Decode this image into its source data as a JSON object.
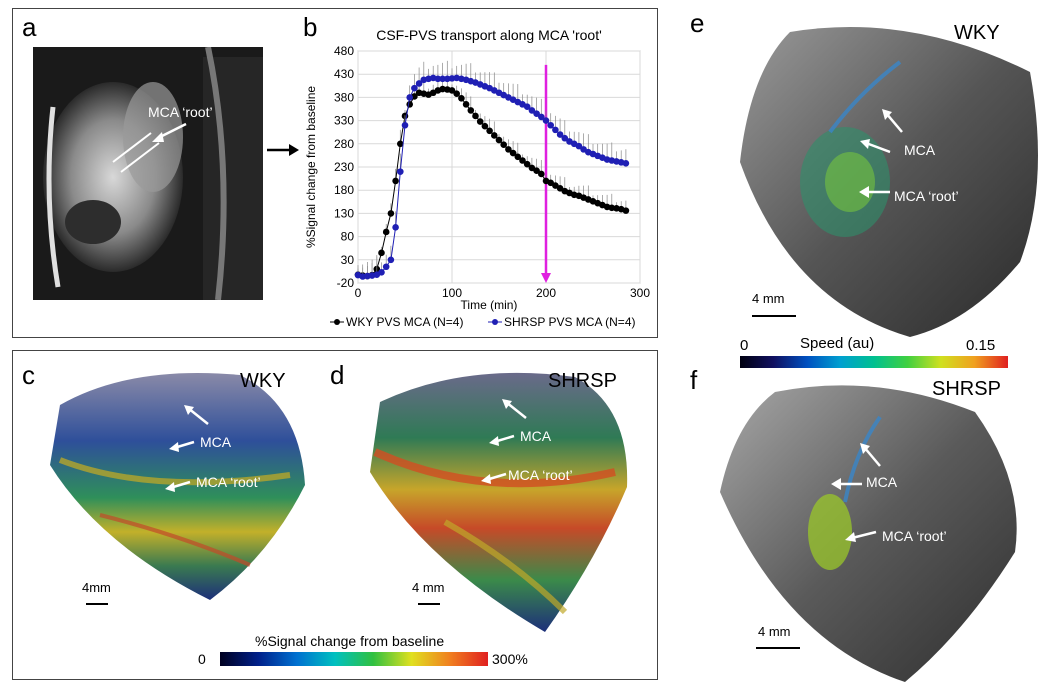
{
  "panels": {
    "a": {
      "label": "a",
      "annotation": "MCA ‘root’"
    },
    "b": {
      "label": "b"
    },
    "c": {
      "label": "c",
      "title": "WKY",
      "arrows": [
        "MCA",
        "MCA ‘root’"
      ],
      "scale": "4mm"
    },
    "d": {
      "label": "d",
      "title": "SHRSP",
      "arrows": [
        "MCA",
        "MCA ‘root’"
      ],
      "scale": "4 mm"
    },
    "e": {
      "label": "e",
      "title": "WKY",
      "arrows": [
        "MCA",
        "MCA ‘root’"
      ],
      "scale": "4 mm"
    },
    "f": {
      "label": "f",
      "title": "SHRSP",
      "arrows": [
        "MCA",
        "MCA ‘root’"
      ],
      "scale": "4 mm"
    }
  },
  "colorbars": {
    "signal": {
      "title": "%Signal change from baseline",
      "min": "0",
      "max": "300%"
    },
    "speed": {
      "title": "Speed (au)",
      "min": "0",
      "max": "0.15"
    }
  },
  "chart_data": {
    "type": "line",
    "title": "CSF-PVS transport along MCA  'root'",
    "xlabel": "Time (min)",
    "ylabel": "%Signal change from baseline",
    "xlim": [
      0,
      300
    ],
    "ylim": [
      -20,
      480
    ],
    "xticks": [
      "0",
      "100",
      "200",
      "300"
    ],
    "yticks": [
      "-20",
      "30",
      "80",
      "130",
      "180",
      "230",
      "280",
      "330",
      "380",
      "430",
      "480"
    ],
    "grid": true,
    "legend_position": "bottom",
    "marker_line_x": 200,
    "series": [
      {
        "name": "WKY PVS MCA (N=4)",
        "color": "#000000",
        "x": [
          0,
          5,
          10,
          15,
          20,
          25,
          30,
          35,
          40,
          45,
          50,
          55,
          60,
          65,
          70,
          75,
          80,
          85,
          90,
          95,
          100,
          105,
          110,
          115,
          120,
          125,
          130,
          135,
          140,
          145,
          150,
          155,
          160,
          165,
          170,
          175,
          180,
          185,
          190,
          195,
          200,
          205,
          210,
          215,
          220,
          225,
          230,
          235,
          240,
          245,
          250,
          255,
          260,
          265,
          270,
          275,
          280,
          285
        ],
        "y": [
          -2,
          -4,
          -5,
          -3,
          10,
          45,
          90,
          130,
          200,
          280,
          340,
          365,
          382,
          390,
          388,
          386,
          390,
          395,
          398,
          397,
          395,
          388,
          378,
          365,
          352,
          340,
          328,
          318,
          308,
          298,
          288,
          278,
          268,
          260,
          252,
          244,
          236,
          228,
          222,
          215,
          200,
          196,
          190,
          184,
          178,
          174,
          170,
          168,
          164,
          160,
          156,
          152,
          148,
          144,
          142,
          141,
          139,
          136
        ]
      },
      {
        "name": "SHRSP PVS MCA (N=4)",
        "color": "#1f1fb4",
        "x": [
          0,
          5,
          10,
          15,
          20,
          25,
          30,
          35,
          40,
          45,
          50,
          55,
          60,
          65,
          70,
          75,
          80,
          85,
          90,
          95,
          100,
          105,
          110,
          115,
          120,
          125,
          130,
          135,
          140,
          145,
          150,
          155,
          160,
          165,
          170,
          175,
          180,
          185,
          190,
          195,
          200,
          205,
          210,
          215,
          220,
          225,
          230,
          235,
          240,
          245,
          250,
          255,
          260,
          265,
          270,
          275,
          280,
          285
        ],
        "y": [
          -3,
          -6,
          -5,
          -4,
          -2,
          3,
          15,
          30,
          100,
          220,
          320,
          380,
          400,
          410,
          418,
          420,
          422,
          420,
          420,
          420,
          421,
          422,
          420,
          418,
          415,
          412,
          408,
          404,
          400,
          395,
          390,
          385,
          380,
          375,
          370,
          365,
          360,
          352,
          345,
          338,
          330,
          320,
          310,
          300,
          292,
          285,
          280,
          275,
          268,
          262,
          258,
          254,
          250,
          246,
          244,
          242,
          240,
          238
        ]
      }
    ]
  }
}
